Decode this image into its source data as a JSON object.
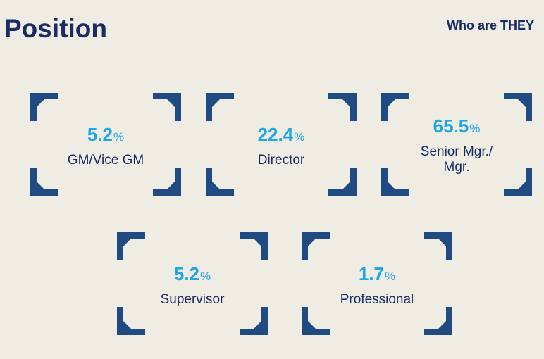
{
  "page": {
    "title": "Position",
    "subtitle": "Who are THEY"
  },
  "colors": {
    "background": "#EEECE3",
    "frame": "#1F4A82",
    "value": "#1FA6E6",
    "text": "#1B2B63"
  },
  "stats": [
    {
      "value": "5.2",
      "unit": "%",
      "label": "GM/Vice GM"
    },
    {
      "value": "22.4",
      "unit": "%",
      "label": "Director"
    },
    {
      "value": "65.5",
      "unit": "%",
      "label": "Senior Mgr./\nMgr."
    },
    {
      "value": "5.2",
      "unit": "%",
      "label": "Supervisor"
    },
    {
      "value": "1.7",
      "unit": "%",
      "label": "Professional"
    }
  ]
}
